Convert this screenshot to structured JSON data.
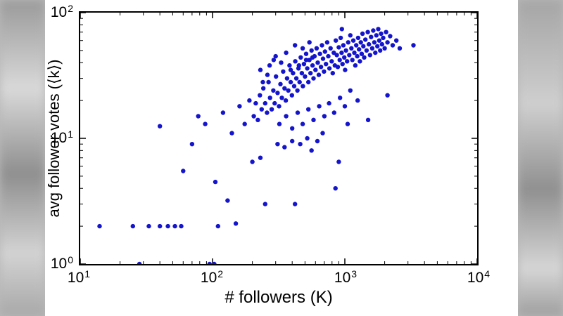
{
  "canvas": {
    "letterbox_color": "#b9b9b9",
    "figure_background": "#ffffff"
  },
  "chart_data": {
    "type": "scatter",
    "title": "",
    "xlabel": "# followers (K)",
    "ylabel": "avg follower votes (⟨k⟩)",
    "x_scale": "log",
    "y_scale": "log",
    "xlim": [
      10,
      10000
    ],
    "ylim": [
      1,
      100
    ],
    "grid": false,
    "legend": "none",
    "marker_color": "#1414cc",
    "marker_radius": 3.2,
    "axis_color": "#000000",
    "x_ticks": [
      {
        "base": "10",
        "exp": "1"
      },
      {
        "base": "10",
        "exp": "2"
      },
      {
        "base": "10",
        "exp": "3"
      },
      {
        "base": "10",
        "exp": "4"
      }
    ],
    "y_ticks": [
      {
        "base": "10",
        "exp": "2"
      },
      {
        "base": "10",
        "exp": "1"
      },
      {
        "base": "10",
        "exp": "0"
      }
    ],
    "points": [
      [
        14,
        2
      ],
      [
        25,
        2
      ],
      [
        33,
        2
      ],
      [
        40,
        2
      ],
      [
        46,
        2
      ],
      [
        52,
        2
      ],
      [
        58,
        2
      ],
      [
        110,
        2
      ],
      [
        150,
        2.1
      ],
      [
        28,
        1
      ],
      [
        95,
        1
      ],
      [
        103,
        1
      ],
      [
        40,
        12.5
      ],
      [
        60,
        5.5
      ],
      [
        70,
        9
      ],
      [
        105,
        4.5
      ],
      [
        130,
        3.2
      ],
      [
        250,
        3
      ],
      [
        420,
        3
      ],
      [
        850,
        4
      ],
      [
        900,
        6.5
      ],
      [
        78,
        15
      ],
      [
        88,
        13
      ],
      [
        120,
        16
      ],
      [
        140,
        11
      ],
      [
        160,
        18
      ],
      [
        175,
        13
      ],
      [
        190,
        20
      ],
      [
        200,
        6.5
      ],
      [
        230,
        7
      ],
      [
        310,
        9
      ],
      [
        350,
        8.5
      ],
      [
        400,
        9.5
      ],
      [
        460,
        9
      ],
      [
        520,
        10
      ],
      [
        560,
        8
      ],
      [
        1050,
        13
      ],
      [
        1500,
        14
      ],
      [
        620,
        9.5
      ],
      [
        680,
        11
      ],
      [
        205,
        15
      ],
      [
        212,
        19
      ],
      [
        220,
        14
      ],
      [
        228,
        22
      ],
      [
        235,
        17
      ],
      [
        242,
        25
      ],
      [
        250,
        19
      ],
      [
        258,
        16
      ],
      [
        265,
        28
      ],
      [
        272,
        21
      ],
      [
        280,
        17
      ],
      [
        288,
        24
      ],
      [
        295,
        19
      ],
      [
        302,
        31
      ],
      [
        310,
        23
      ],
      [
        318,
        18
      ],
      [
        326,
        27
      ],
      [
        334,
        21
      ],
      [
        342,
        34
      ],
      [
        350,
        25
      ],
      [
        358,
        20
      ],
      [
        366,
        30
      ],
      [
        374,
        24
      ],
      [
        382,
        38
      ],
      [
        390,
        28
      ],
      [
        398,
        22
      ],
      [
        406,
        33
      ],
      [
        414,
        26
      ],
      [
        422,
        41
      ],
      [
        430,
        30
      ],
      [
        438,
        24
      ],
      [
        446,
        36
      ],
      [
        455,
        28
      ],
      [
        464,
        44
      ],
      [
        473,
        33
      ],
      [
        482,
        26
      ],
      [
        491,
        39
      ],
      [
        500,
        31
      ],
      [
        510,
        47
      ],
      [
        520,
        36
      ],
      [
        530,
        28
      ],
      [
        540,
        42
      ],
      [
        550,
        33
      ],
      [
        560,
        50
      ],
      [
        570,
        38
      ],
      [
        580,
        30
      ],
      [
        590,
        45
      ],
      [
        600,
        35
      ],
      [
        612,
        52
      ],
      [
        624,
        40
      ],
      [
        636,
        32
      ],
      [
        648,
        47
      ],
      [
        660,
        37
      ],
      [
        672,
        55
      ],
      [
        684,
        43
      ],
      [
        696,
        34
      ],
      [
        708,
        49
      ],
      [
        720,
        39
      ],
      [
        735,
        58
      ],
      [
        750,
        45
      ],
      [
        765,
        36
      ],
      [
        780,
        52
      ],
      [
        795,
        41
      ],
      [
        810,
        33
      ],
      [
        825,
        48
      ],
      [
        840,
        38
      ],
      [
        855,
        60
      ],
      [
        870,
        46
      ],
      [
        885,
        37
      ],
      [
        900,
        53
      ],
      [
        915,
        42
      ],
      [
        930,
        63
      ],
      [
        945,
        48
      ],
      [
        960,
        39
      ],
      [
        975,
        55
      ],
      [
        990,
        44
      ],
      [
        1005,
        35
      ],
      [
        1020,
        50
      ],
      [
        1040,
        41
      ],
      [
        1060,
        58
      ],
      [
        1080,
        46
      ],
      [
        1100,
        66
      ],
      [
        1120,
        52
      ],
      [
        1140,
        42
      ],
      [
        1160,
        60
      ],
      [
        1180,
        48
      ],
      [
        1200,
        38
      ],
      [
        1220,
        55
      ],
      [
        1240,
        45
      ],
      [
        1260,
        63
      ],
      [
        1280,
        51
      ],
      [
        1300,
        41
      ],
      [
        1320,
        58
      ],
      [
        1340,
        47
      ],
      [
        1360,
        68
      ],
      [
        1380,
        54
      ],
      [
        1400,
        44
      ],
      [
        1430,
        61
      ],
      [
        1460,
        50
      ],
      [
        1490,
        70
      ],
      [
        1520,
        56
      ],
      [
        1550,
        46
      ],
      [
        1580,
        64
      ],
      [
        1610,
        52
      ],
      [
        1640,
        72
      ],
      [
        1670,
        58
      ],
      [
        1700,
        48
      ],
      [
        1730,
        66
      ],
      [
        1760,
        54
      ],
      [
        1790,
        74
      ],
      [
        1820,
        60
      ],
      [
        1850,
        50
      ],
      [
        1880,
        68
      ],
      [
        1910,
        56
      ],
      [
        1950,
        63
      ],
      [
        2000,
        52
      ],
      [
        2050,
        70
      ],
      [
        2100,
        58
      ],
      [
        2200,
        65
      ],
      [
        2300,
        55
      ],
      [
        2450,
        60
      ],
      [
        2600,
        52
      ],
      [
        3300,
        55
      ],
      [
        950,
        74
      ],
      [
        2100,
        22
      ],
      [
        320,
        13
      ],
      [
        360,
        15
      ],
      [
        400,
        12
      ],
      [
        440,
        16
      ],
      [
        480,
        13
      ],
      [
        530,
        17
      ],
      [
        580,
        14
      ],
      [
        640,
        18
      ],
      [
        700,
        15
      ],
      [
        760,
        19
      ],
      [
        830,
        16
      ],
      [
        920,
        21
      ],
      [
        1000,
        18
      ],
      [
        1100,
        24
      ],
      [
        1250,
        20
      ],
      [
        230,
        35
      ],
      [
        260,
        32
      ],
      [
        290,
        42
      ],
      [
        240,
        28
      ],
      [
        270,
        38
      ],
      [
        300,
        45
      ],
      [
        330,
        40
      ],
      [
        360,
        48
      ],
      [
        390,
        35
      ],
      [
        420,
        55
      ],
      [
        450,
        38
      ],
      [
        480,
        52
      ],
      [
        510,
        42
      ],
      [
        540,
        58
      ],
      [
        570,
        44
      ]
    ]
  }
}
